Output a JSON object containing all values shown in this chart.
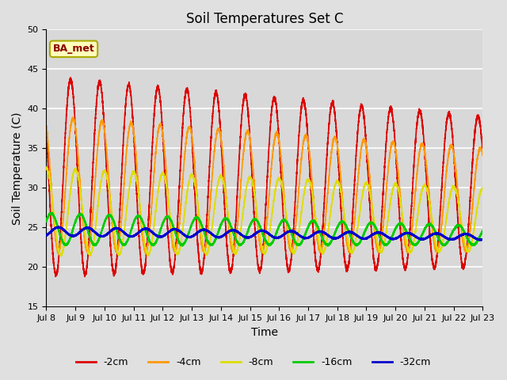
{
  "title": "Soil Temperatures Set C",
  "xlabel": "Time",
  "ylabel": "Soil Temperature (C)",
  "ylim": [
    15,
    50
  ],
  "xlim": [
    0,
    360
  ],
  "yticks": [
    15,
    20,
    25,
    30,
    35,
    40,
    45,
    50
  ],
  "xtick_positions": [
    0,
    24,
    48,
    72,
    96,
    120,
    144,
    168,
    192,
    216,
    240,
    264,
    288,
    312,
    336,
    360
  ],
  "xtick_labels": [
    "Jul 8",
    "Jul 9",
    "Jul 10",
    "Jul 11",
    "Jul 12",
    "Jul 13",
    "Jul 14",
    "Jul 15",
    "Jul 16",
    "Jul 17",
    "Jul 18",
    "Jul 19",
    "Jul 20",
    "Jul 21",
    "Jul 22",
    "Jul 23"
  ],
  "annotation_text": "BA_met",
  "series_colors": [
    "#dd0000",
    "#ff9900",
    "#dddd00",
    "#00cc00",
    "#0000cc"
  ],
  "series_labels": [
    "-2cm",
    "-4cm",
    "-8cm",
    "-16cm",
    "-32cm"
  ],
  "background_color": "#e0e0e0",
  "plot_bg_color": "#d8d8d8",
  "grid_color": "#ffffff",
  "title_fontsize": 12,
  "axis_fontsize": 10,
  "tick_fontsize": 8
}
